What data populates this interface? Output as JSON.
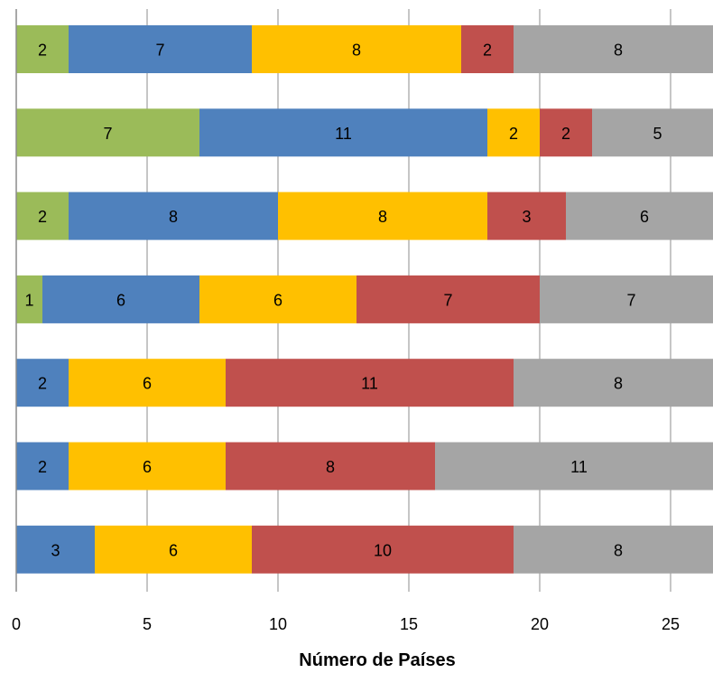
{
  "chart_data": {
    "type": "bar",
    "orientation": "horizontal",
    "stacked": true,
    "xlabel": "Número de Países",
    "ylabel": "",
    "xlim": [
      0,
      26.5
    ],
    "xticks": [
      0,
      5,
      10,
      15,
      20,
      25
    ],
    "grid": true,
    "legend": "none",
    "categories": [
      "",
      "",
      "",
      "",
      "",
      "",
      ""
    ],
    "series": [
      {
        "color": "#9BBB59",
        "values": [
          2,
          7,
          2,
          1,
          0,
          0,
          0
        ]
      },
      {
        "color": "#4F81BD",
        "values": [
          7,
          11,
          8,
          6,
          2,
          2,
          3
        ]
      },
      {
        "color": "#FFC000",
        "values": [
          8,
          2,
          8,
          6,
          6,
          6,
          6
        ]
      },
      {
        "color": "#C0504D",
        "values": [
          2,
          2,
          3,
          7,
          11,
          8,
          10
        ]
      },
      {
        "color": "#A5A5A5",
        "values": [
          8,
          5,
          6,
          7,
          8,
          11,
          8
        ]
      }
    ]
  }
}
